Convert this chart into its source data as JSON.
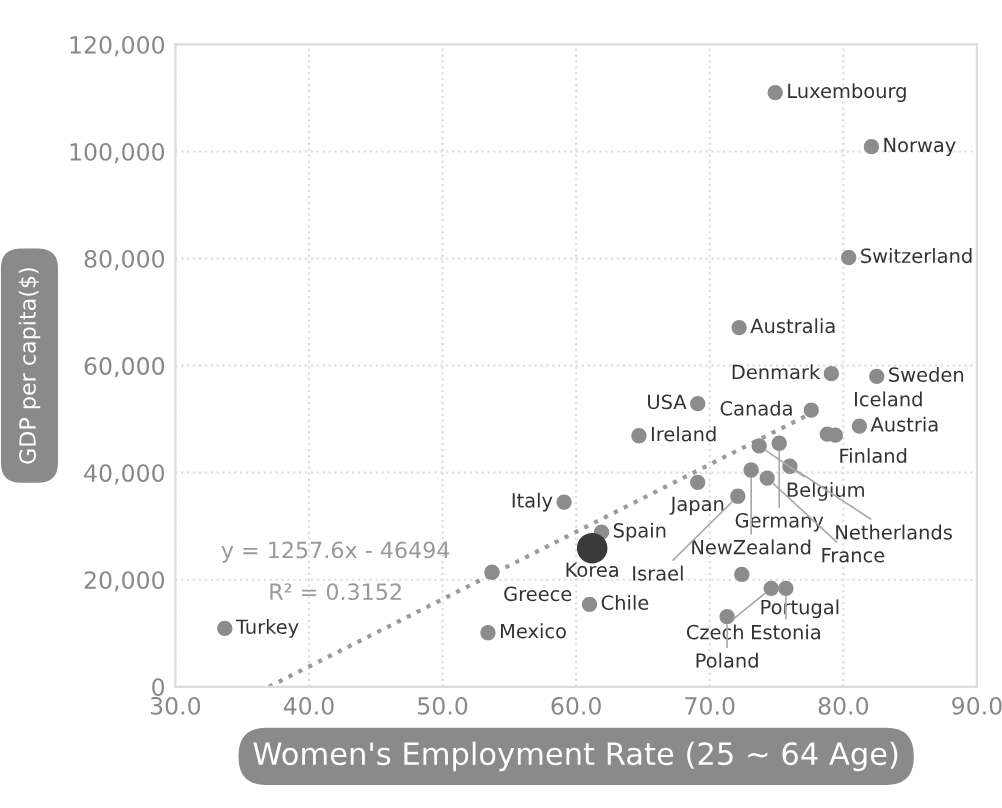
{
  "chart_data": {
    "type": "scatter",
    "xlabel": "Women's Employment Rate (25 ~ 64 Age)",
    "ylabel": "GDP per capita($)",
    "xlim": [
      30,
      90
    ],
    "ylim": [
      0,
      120000
    ],
    "xticks": [
      {
        "value": 30,
        "label": "30.0"
      },
      {
        "value": 40,
        "label": "40.0"
      },
      {
        "value": 50,
        "label": "50.0"
      },
      {
        "value": 60,
        "label": "60.0"
      },
      {
        "value": 70,
        "label": "70.0"
      },
      {
        "value": 80,
        "label": "80.0"
      },
      {
        "value": 90,
        "label": "90.0"
      }
    ],
    "yticks": [
      0,
      {
        "value": 20000,
        "label": "20,000"
      },
      {
        "value": 40000,
        "label": "40,000"
      },
      {
        "value": 60000,
        "label": "60,000"
      },
      {
        "value": 80000,
        "label": "80,000"
      },
      {
        "value": 100000,
        "label": "100,000"
      },
      {
        "value": 120000,
        "label": "120,000"
      }
    ],
    "grid": true,
    "legend": false,
    "series": [
      {
        "marker": "circle",
        "sizes": [
          0.25,
          0.25,
          0.25,
          0.25,
          0.25,
          0.25,
          0.25,
          0.25,
          0.25,
          0.25,
          0.25,
          0.25,
          0.25,
          0.25,
          0.25,
          0.25,
          0.25,
          0.25,
          0.25,
          0.25,
          0.25,
          1,
          0.25,
          0.25,
          0.25,
          0.25,
          0.25,
          0.25,
          0.25,
          0.25
        ],
        "x": [
          74.9,
          82.1,
          80.4,
          72.2,
          79.1,
          82.5,
          77.6,
          69.1,
          64.7,
          78.8,
          79.4,
          81.2,
          73.7,
          75.2,
          73.1,
          76.0,
          74.3,
          69.1,
          72.1,
          59.1,
          61.9,
          61.2,
          61.0,
          72.4,
          75.7,
          74.6,
          71.3,
          53.7,
          53.4,
          33.7
        ],
        "values": [
          111000,
          100900,
          80200,
          67100,
          58500,
          58000,
          51700,
          52900,
          46900,
          47200,
          47000,
          48700,
          45000,
          45500,
          40500,
          41200,
          39000,
          38200,
          35600,
          34500,
          28900,
          25900,
          15400,
          21000,
          18400,
          18400,
          13100,
          21400,
          10100,
          10900
        ],
        "colors": [
          "#8c8c8c",
          "#8c8c8c",
          "#8c8c8c",
          "#8c8c8c",
          "#8c8c8c",
          "#8c8c8c",
          "#8c8c8c",
          "#8c8c8c",
          "#8c8c8c",
          "#8c8c8c",
          "#8c8c8c",
          "#8c8c8c",
          "#8c8c8c",
          "#8c8c8c",
          "#8c8c8c",
          "#8c8c8c",
          "#8c8c8c",
          "#8c8c8c",
          "#8c8c8c",
          "#8c8c8c",
          "#8c8c8c",
          "#3a3a3a",
          "#8c8c8c",
          "#8c8c8c",
          "#8c8c8c",
          "#8c8c8c",
          "#8c8c8c",
          "#8c8c8c",
          "#8c8c8c",
          "#8c8c8c"
        ]
      },
      {
        "type": "line",
        "line_style": "dotted",
        "color": "#9a9a9a",
        "x": [
          37.0,
          78.0
        ],
        "values": [
          0,
          51600
        ]
      }
    ],
    "annotations": [
      {
        "text": "Luxembourg",
        "x": 74.9,
        "y": 111000
      },
      {
        "text": "Norway",
        "x": 82.1,
        "y": 100900
      },
      {
        "text": "Switzerland",
        "x": 80.4,
        "y": 80200
      },
      {
        "text": "Australia",
        "x": 72.2,
        "y": 67100
      },
      {
        "text": "Denmark",
        "x": 79.1,
        "y": 58500
      },
      {
        "text": "Sweden",
        "x": 82.5,
        "y": 58000
      },
      {
        "text": "Canada",
        "x": 77.6,
        "y": 51700
      },
      {
        "text": "USA",
        "x": 69.1,
        "y": 52900
      },
      {
        "text": "Ireland",
        "x": 64.7,
        "y": 46900
      },
      {
        "text": "Finland",
        "x": 78.8,
        "y": 47200
      },
      {
        "text": "Iceland",
        "x": 79.4,
        "y": 47000
      },
      {
        "text": "Austria",
        "x": 81.2,
        "y": 48700
      },
      {
        "text": "Belgium",
        "x": 73.7,
        "y": 45000
      },
      {
        "text": "Germany",
        "x": 75.2,
        "y": 45500
      },
      {
        "text": "NewZealand",
        "x": 73.1,
        "y": 40500
      },
      {
        "text": "Netherlands",
        "x": 76.0,
        "y": 41200
      },
      {
        "text": "France",
        "x": 74.3,
        "y": 39000
      },
      {
        "text": "Japan",
        "x": 69.1,
        "y": 38200
      },
      {
        "text": "Israel",
        "x": 72.1,
        "y": 35600
      },
      {
        "text": "Italy",
        "x": 59.1,
        "y": 34500
      },
      {
        "text": "Spain",
        "x": 61.9,
        "y": 28900
      },
      {
        "text": "Korea",
        "x": 61.2,
        "y": 25900
      },
      {
        "text": "Chile",
        "x": 61.0,
        "y": 15400
      },
      {
        "text": "Portugal",
        "x": 72.4,
        "y": 21000
      },
      {
        "text": "Estonia",
        "x": 75.7,
        "y": 18400
      },
      {
        "text": "Czech",
        "x": 74.6,
        "y": 18400
      },
      {
        "text": "Poland",
        "x": 71.3,
        "y": 13100
      },
      {
        "text": "Greece",
        "x": 53.7,
        "y": 21400
      },
      {
        "text": "Mexico",
        "x": 53.4,
        "y": 10100
      },
      {
        "text": "Turkey",
        "x": 33.7,
        "y": 10900
      },
      "y = 1257.6x - 46494",
      "R² = 0.3152"
    ]
  }
}
